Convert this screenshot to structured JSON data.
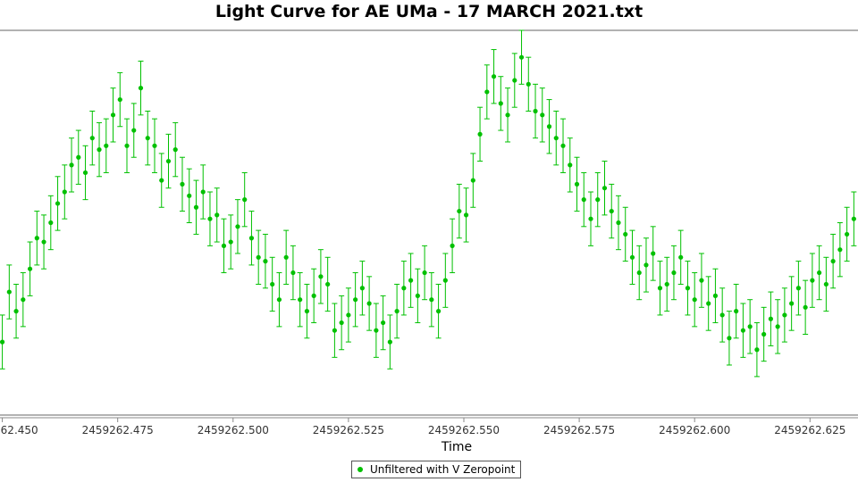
{
  "chart_data": {
    "type": "scatter",
    "title": "Light Curve for AE UMa - 17 MARCH 2021.txt",
    "xlabel": "Time",
    "ylabel": "",
    "xlim": [
      2459262.4495,
      2459262.6354
    ],
    "ylim": [
      0,
      1
    ],
    "x_ticks": [
      2459262.45,
      2459262.475,
      2459262.5,
      2459262.525,
      2459262.55,
      2459262.575,
      2459262.6,
      2459262.625
    ],
    "x_tick_labels": [
      "2459262.450",
      "2459262.475",
      "2459262.500",
      "2459262.525",
      "2459262.550",
      "2459262.575",
      "2459262.600",
      "2459262.625"
    ],
    "grid": false,
    "legend": "bottom-center",
    "color": "#00c000",
    "series": [
      {
        "name": "Unfiltered with V Zeropoint",
        "x": [
          2459262.45,
          2459262.4515,
          2459262.453,
          2459262.4545,
          2459262.456,
          2459262.4575,
          2459262.459,
          2459262.4605,
          2459262.462,
          2459262.4635,
          2459262.465,
          2459262.4665,
          2459262.468,
          2459262.4695,
          2459262.471,
          2459262.4725,
          2459262.474,
          2459262.4755,
          2459262.477,
          2459262.4785,
          2459262.48,
          2459262.4815,
          2459262.483,
          2459262.4845,
          2459262.486,
          2459262.4875,
          2459262.489,
          2459262.4905,
          2459262.492,
          2459262.4935,
          2459262.495,
          2459262.4965,
          2459262.498,
          2459262.4995,
          2459262.501,
          2459262.5025,
          2459262.504,
          2459262.5055,
          2459262.507,
          2459262.5085,
          2459262.51,
          2459262.5115,
          2459262.513,
          2459262.5145,
          2459262.516,
          2459262.5175,
          2459262.519,
          2459262.5205,
          2459262.522,
          2459262.5235,
          2459262.525,
          2459262.5265,
          2459262.528,
          2459262.5295,
          2459262.531,
          2459262.5325,
          2459262.534,
          2459262.5355,
          2459262.537,
          2459262.5385,
          2459262.54,
          2459262.5415,
          2459262.543,
          2459262.5445,
          2459262.546,
          2459262.5475,
          2459262.549,
          2459262.5505,
          2459262.552,
          2459262.5535,
          2459262.555,
          2459262.5565,
          2459262.558,
          2459262.5595,
          2459262.561,
          2459262.5625,
          2459262.564,
          2459262.5655,
          2459262.567,
          2459262.5685,
          2459262.57,
          2459262.5715,
          2459262.573,
          2459262.5745,
          2459262.576,
          2459262.5775,
          2459262.579,
          2459262.5805,
          2459262.582,
          2459262.5835,
          2459262.585,
          2459262.5865,
          2459262.588,
          2459262.5895,
          2459262.591,
          2459262.5925,
          2459262.594,
          2459262.5955,
          2459262.597,
          2459262.5985,
          2459262.6,
          2459262.6015,
          2459262.603,
          2459262.6045,
          2459262.606,
          2459262.6075,
          2459262.609,
          2459262.6105,
          2459262.612,
          2459262.6135,
          2459262.615,
          2459262.6165,
          2459262.618,
          2459262.6195,
          2459262.621,
          2459262.6225,
          2459262.624,
          2459262.6255,
          2459262.627,
          2459262.6285,
          2459262.63,
          2459262.6315,
          2459262.633,
          2459262.6345
        ],
        "y": [
          0.19,
          0.32,
          0.27,
          0.3,
          0.38,
          0.46,
          0.45,
          0.5,
          0.55,
          0.58,
          0.65,
          0.67,
          0.63,
          0.72,
          0.69,
          0.7,
          0.78,
          0.82,
          0.7,
          0.74,
          0.85,
          0.72,
          0.7,
          0.61,
          0.66,
          0.69,
          0.6,
          0.57,
          0.54,
          0.58,
          0.51,
          0.52,
          0.44,
          0.45,
          0.49,
          0.56,
          0.46,
          0.41,
          0.4,
          0.34,
          0.3,
          0.41,
          0.37,
          0.3,
          0.27,
          0.31,
          0.36,
          0.34,
          0.22,
          0.24,
          0.26,
          0.3,
          0.33,
          0.29,
          0.22,
          0.24,
          0.19,
          0.27,
          0.33,
          0.35,
          0.31,
          0.37,
          0.3,
          0.27,
          0.35,
          0.44,
          0.53,
          0.52,
          0.61,
          0.73,
          0.84,
          0.88,
          0.81,
          0.78,
          0.87,
          0.93,
          0.86,
          0.79,
          0.78,
          0.75,
          0.72,
          0.7,
          0.65,
          0.6,
          0.56,
          0.51,
          0.56,
          0.59,
          0.53,
          0.5,
          0.47,
          0.41,
          0.37,
          0.39,
          0.42,
          0.33,
          0.34,
          0.37,
          0.41,
          0.33,
          0.3,
          0.35,
          0.29,
          0.31,
          0.26,
          0.2,
          0.27,
          0.22,
          0.23,
          0.17,
          0.21,
          0.25,
          0.23,
          0.26,
          0.29,
          0.33,
          0.28,
          0.35,
          0.37,
          0.34,
          0.4,
          0.43,
          0.47,
          0.51
        ],
        "error": [
          0.07,
          0.07,
          0.07,
          0.07,
          0.07,
          0.07,
          0.07,
          0.07,
          0.07,
          0.07,
          0.07,
          0.07,
          0.07,
          0.07,
          0.07,
          0.07,
          0.07,
          0.07,
          0.07,
          0.07,
          0.07,
          0.07,
          0.07,
          0.07,
          0.07,
          0.07,
          0.07,
          0.07,
          0.07,
          0.07,
          0.07,
          0.07,
          0.07,
          0.07,
          0.07,
          0.07,
          0.07,
          0.07,
          0.07,
          0.07,
          0.07,
          0.07,
          0.07,
          0.07,
          0.07,
          0.07,
          0.07,
          0.07,
          0.07,
          0.07,
          0.07,
          0.07,
          0.07,
          0.07,
          0.07,
          0.07,
          0.07,
          0.07,
          0.07,
          0.07,
          0.07,
          0.07,
          0.07,
          0.07,
          0.07,
          0.07,
          0.07,
          0.07,
          0.07,
          0.07,
          0.07,
          0.07,
          0.07,
          0.07,
          0.07,
          0.07,
          0.07,
          0.07,
          0.07,
          0.07,
          0.07,
          0.07,
          0.07,
          0.07,
          0.07,
          0.07,
          0.07,
          0.07,
          0.07,
          0.07,
          0.07,
          0.07,
          0.07,
          0.07,
          0.07,
          0.07,
          0.07,
          0.07,
          0.07,
          0.07,
          0.07,
          0.07,
          0.07,
          0.07,
          0.07,
          0.07,
          0.07,
          0.07,
          0.07,
          0.07,
          0.07,
          0.07,
          0.07,
          0.07,
          0.07,
          0.07,
          0.07,
          0.07,
          0.07,
          0.07,
          0.07,
          0.07,
          0.07,
          0.07
        ]
      }
    ]
  }
}
